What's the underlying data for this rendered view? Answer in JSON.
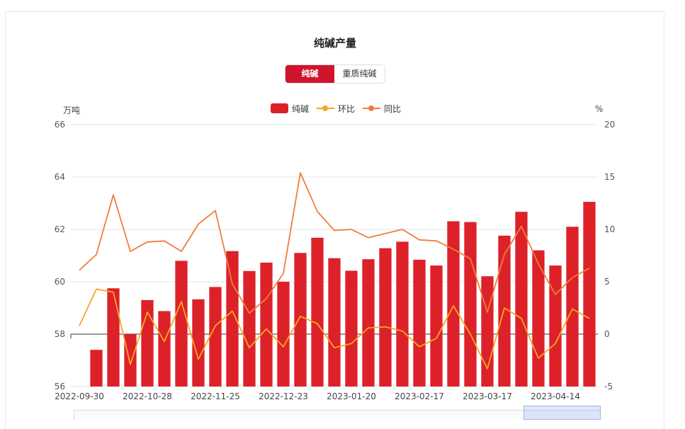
{
  "title": "纯碱产量",
  "toggle": {
    "active": "纯碱",
    "other": "重质纯碱"
  },
  "units": {
    "left": "万吨",
    "right": "%"
  },
  "legend": {
    "bar": "纯碱",
    "mom": "环比",
    "yoy": "同比"
  },
  "colors": {
    "bar": "#dc2129",
    "mom": "#f5a623",
    "yoy": "#ef7d3c",
    "grid": "#e6e6e6",
    "axis": "#333333"
  },
  "chart_data": {
    "type": "bar",
    "x_labels_shown": [
      "2022-09-30",
      "2022-10-28",
      "2022-11-25",
      "2022-12-23",
      "2023-01-20",
      "2023-02-17",
      "2023-03-17",
      "2023-04-14"
    ],
    "yleft": {
      "min": 56,
      "max": 66,
      "ticks": [
        56,
        58,
        60,
        62,
        64,
        66
      ]
    },
    "yright": {
      "min": -5,
      "max": 20,
      "ticks": [
        -5,
        0,
        5,
        10,
        15,
        20
      ]
    },
    "series": [
      {
        "name": "纯碱",
        "axis": "left",
        "type": "bar",
        "values": [
          null,
          57.4,
          59.75,
          58.0,
          59.3,
          58.88,
          60.8,
          59.33,
          59.8,
          61.17,
          60.41,
          60.73,
          60.0,
          61.1,
          61.68,
          60.9,
          60.42,
          60.86,
          61.28,
          61.53,
          60.84,
          60.62,
          62.31,
          62.28,
          60.21,
          61.76,
          62.67,
          61.2,
          60.62,
          62.1,
          63.05
        ]
      },
      {
        "name": "环比",
        "axis": "right",
        "type": "line",
        "values": [
          0.8,
          4.3,
          4.0,
          -2.9,
          2.1,
          -0.7,
          3.1,
          -2.4,
          0.8,
          2.2,
          -1.3,
          0.5,
          -1.2,
          1.7,
          1.0,
          -1.3,
          -0.9,
          0.6,
          0.7,
          0.3,
          -1.2,
          -0.4,
          2.7,
          0.0,
          -3.3,
          2.5,
          1.5,
          -2.3,
          -0.9,
          2.4,
          1.5
        ]
      },
      {
        "name": "同比",
        "axis": "right",
        "type": "line",
        "values": [
          6.1,
          7.6,
          13.3,
          7.9,
          8.8,
          8.9,
          7.9,
          10.5,
          11.8,
          4.8,
          2.0,
          3.4,
          5.8,
          15.4,
          11.7,
          9.9,
          10.0,
          9.2,
          9.6,
          10.0,
          9.0,
          8.9,
          8.1,
          7.2,
          2.1,
          7.6,
          10.3,
          6.7,
          3.8,
          5.4,
          6.3
        ]
      }
    ],
    "grid": true,
    "legend_position": "top-center"
  }
}
